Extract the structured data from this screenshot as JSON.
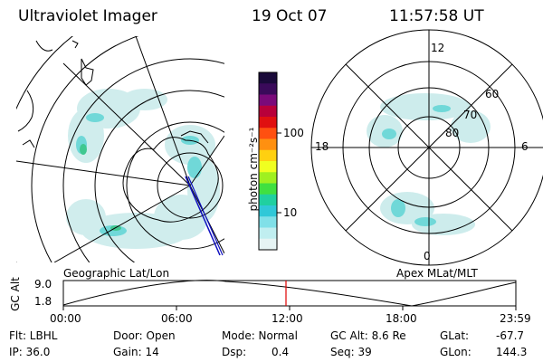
{
  "header": {
    "instrument": "Ultraviolet Imager",
    "date": "19 Oct 07",
    "time": "11:57:58 UT"
  },
  "geo_panel": {
    "label": "Geographic Lat/Lon"
  },
  "polar_panel": {
    "label": "Apex MLat/MLT",
    "mlt_labels": [
      "12",
      "18",
      "6",
      "0"
    ],
    "mlat_labels": [
      "60",
      "70",
      "80"
    ]
  },
  "colorbar": {
    "unit_label": "photon cm⁻²s⁻¹",
    "tick_labels": [
      "100",
      "10"
    ],
    "colors": [
      "#1a0a3a",
      "#3a0a5a",
      "#7a0a7a",
      "#b8003a",
      "#e01010",
      "#ff5010",
      "#ff9010",
      "#ffd010",
      "#f0ff20",
      "#a0f020",
      "#40e040",
      "#20d0a0",
      "#30c8d8",
      "#80e0e8",
      "#c0eef0",
      "#e6f4f4"
    ]
  },
  "altitude_plot": {
    "ylabel": "GC Alt",
    "yticks": [
      "9.0",
      "1.8"
    ],
    "xticks": [
      "00:00",
      "06:00",
      "12:00",
      "18:00",
      "23:59"
    ]
  },
  "status": {
    "filter": "Flt: LBHL",
    "ip": "IP: 36.0",
    "door": "Door: Open",
    "gain": "Gain: 14",
    "mode": "Mode: Normal",
    "dsp_label": "Dsp:",
    "dsp_value": "0.4",
    "gc_alt": "GC Alt: 8.6 Re",
    "seq": "Seq: 39",
    "glat_label": "GLat:",
    "glat_value": "-67.7",
    "glon_label": "GLon:",
    "glon_value": "144.3"
  }
}
